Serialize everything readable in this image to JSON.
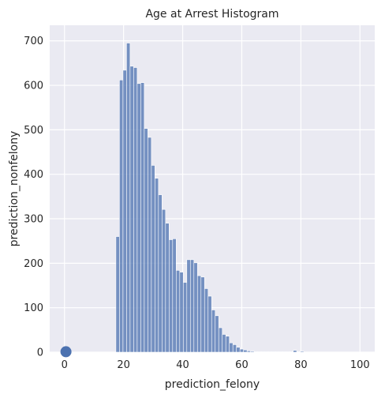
{
  "chart_data": {
    "type": "bar",
    "title": "Age at Arrest Histogram",
    "xlabel": "prediction_felony",
    "ylabel": "prediction_nonfelony",
    "xlim": [
      -5,
      105
    ],
    "ylim": [
      0,
      735
    ],
    "x_ticks": [
      0,
      20,
      40,
      60,
      80,
      100
    ],
    "y_ticks": [
      0,
      100,
      200,
      300,
      400,
      500,
      600,
      700
    ],
    "grid": true,
    "bin_width": 1.2,
    "bin_starts": [
      17.4,
      18.6,
      19.8,
      21.0,
      22.2,
      23.4,
      24.6,
      25.8,
      27.0,
      28.2,
      29.4,
      30.6,
      31.8,
      33.0,
      34.2,
      35.4,
      36.6,
      37.8,
      39.0,
      40.2,
      41.4,
      42.6,
      43.8,
      45.0,
      46.2,
      47.4,
      48.6,
      49.8,
      51.0,
      52.2,
      53.4,
      54.6,
      55.8,
      57.0,
      58.2,
      59.4,
      60.6,
      61.8,
      63.0,
      64.2,
      65.4,
      66.6,
      67.8,
      69.0,
      70.2,
      71.4,
      72.6,
      73.8,
      75.0,
      76.2,
      77.4,
      78.6,
      79.8
    ],
    "values": [
      260,
      612,
      634,
      695,
      643,
      640,
      604,
      606,
      503,
      483,
      420,
      391,
      354,
      321,
      290,
      253,
      255,
      184,
      180,
      157,
      208,
      208,
      201,
      172,
      169,
      143,
      126,
      95,
      82,
      55,
      40,
      36,
      21,
      17,
      11,
      7,
      5,
      3,
      2,
      1,
      1,
      1,
      1,
      1,
      1,
      1,
      1,
      1,
      1,
      1,
      4,
      1,
      2
    ],
    "bar_color": "#4c72b0",
    "points": [
      {
        "x": 0.5,
        "y": 1
      }
    ]
  }
}
